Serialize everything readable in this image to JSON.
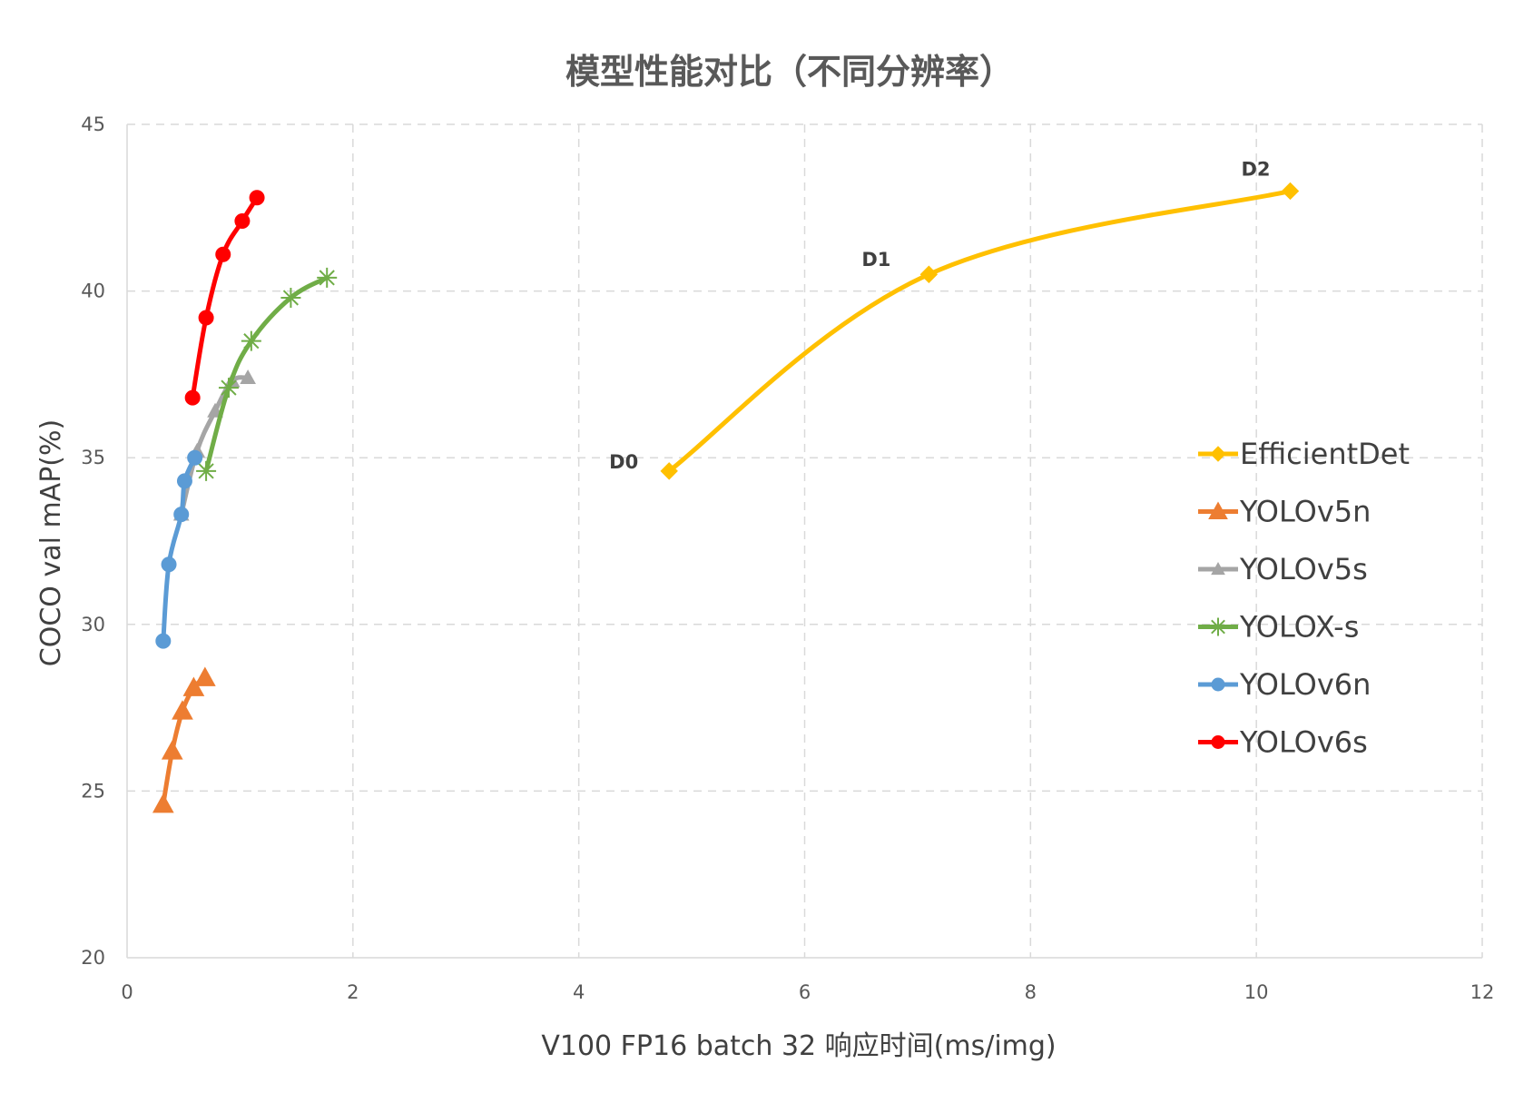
{
  "chart_data": {
    "type": "line",
    "title": "模型性能对比（不同分辨率）",
    "xlabel": "V100 FP16 batch 32 响应时间(ms/img)",
    "ylabel": "COCO val mAP(%)",
    "xlim": [
      0,
      12
    ],
    "ylim": [
      20,
      45
    ],
    "xticks": [
      0,
      2,
      4,
      6,
      8,
      10,
      12
    ],
    "yticks": [
      20,
      25,
      30,
      35,
      40,
      45
    ],
    "grid": true,
    "legend_position": "right",
    "series": [
      {
        "name": "EfficientDet",
        "color": "#FFC000",
        "marker": "diamond",
        "x": [
          4.8,
          7.1,
          10.3
        ],
        "y": [
          34.6,
          40.5,
          43.0
        ],
        "point_labels": [
          "D0",
          "D1",
          "D2"
        ]
      },
      {
        "name": "YOLOv5n",
        "color": "#ED7D31",
        "marker": "triangle",
        "x": [
          0.32,
          0.4,
          0.49,
          0.59,
          0.69
        ],
        "y": [
          24.6,
          26.2,
          27.4,
          28.1,
          28.4
        ]
      },
      {
        "name": "YOLOv5s",
        "color": "#A5A5A5",
        "marker": "triangle-small",
        "x": [
          0.48,
          0.62,
          0.78,
          0.93,
          1.07
        ],
        "y": [
          33.3,
          35.2,
          36.4,
          37.3,
          37.4
        ]
      },
      {
        "name": "YOLOX-s",
        "color": "#70AD47",
        "marker": "star",
        "x": [
          0.7,
          0.9,
          1.1,
          1.45,
          1.77
        ],
        "y": [
          34.6,
          37.1,
          38.5,
          39.8,
          40.4
        ]
      },
      {
        "name": "YOLOv6n",
        "color": "#5B9BD5",
        "marker": "circle",
        "x": [
          0.32,
          0.37,
          0.48,
          0.51,
          0.6
        ],
        "y": [
          29.5,
          31.8,
          33.3,
          34.3,
          35.0
        ]
      },
      {
        "name": "YOLOv6s",
        "color": "#FF0000",
        "marker": "circle",
        "x": [
          0.58,
          0.7,
          0.85,
          1.02,
          1.15
        ],
        "y": [
          36.8,
          39.2,
          41.1,
          42.1,
          42.8
        ]
      }
    ]
  }
}
